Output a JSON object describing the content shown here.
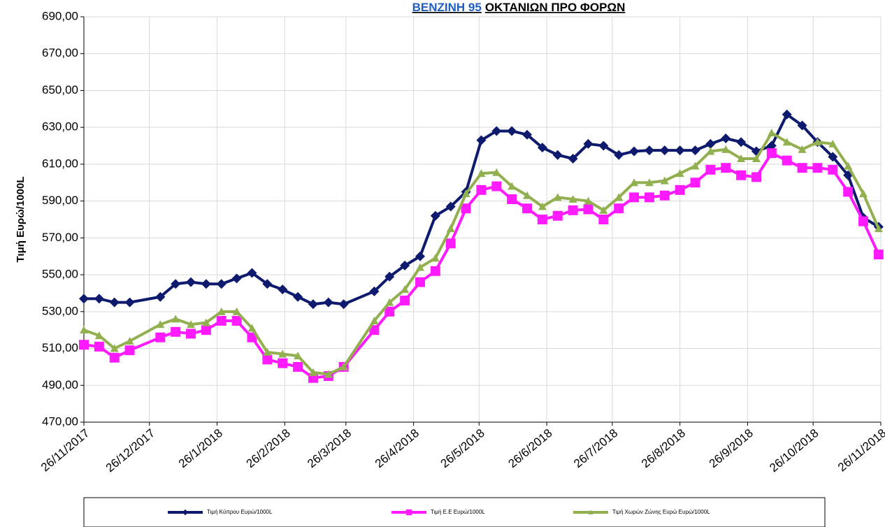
{
  "chart_data": {
    "type": "line",
    "title": [
      "BENZINH 95",
      "ΟΚΤΑΝΙΩΝ ΠΡΟ ΦΟΡΩΝ"
    ],
    "title_colors": [
      "#1f5fbf",
      "#000000"
    ],
    "ylabel": "Τιμή Ευρώ/1000L",
    "x": [
      "2017-11-26",
      "2017-12-03",
      "2017-12-10",
      "2017-12-17",
      "2017-12-31",
      "2018-01-07",
      "2018-01-14",
      "2018-01-21",
      "2018-01-28",
      "2018-02-04",
      "2018-02-11",
      "2018-02-18",
      "2018-02-25",
      "2018-03-04",
      "2018-03-11",
      "2018-03-18",
      "2018-03-25",
      "2018-04-08",
      "2018-04-15",
      "2018-04-22",
      "2018-04-29",
      "2018-05-06",
      "2018-05-13",
      "2018-05-20",
      "2018-05-27",
      "2018-06-03",
      "2018-06-10",
      "2018-06-17",
      "2018-06-24",
      "2018-07-01",
      "2018-07-08",
      "2018-07-15",
      "2018-07-22",
      "2018-07-29",
      "2018-08-05",
      "2018-08-12",
      "2018-08-19",
      "2018-08-26",
      "2018-09-02",
      "2018-09-09",
      "2018-09-16",
      "2018-09-23",
      "2018-09-30",
      "2018-10-07",
      "2018-10-14",
      "2018-10-21",
      "2018-10-28",
      "2018-11-04",
      "2018-11-11",
      "2018-11-18",
      "2018-11-25"
    ],
    "series": [
      {
        "name": "Τιμή Κύπρου Ευρώ/1000L",
        "color": "#0d1a6e",
        "marker": "diamond",
        "values": [
          537,
          537,
          535,
          535,
          538,
          545,
          546,
          545,
          545,
          548,
          551,
          545,
          542,
          538,
          534,
          535,
          534,
          541,
          549,
          555,
          560,
          582,
          587,
          595,
          623,
          628,
          628,
          626,
          619,
          615,
          613,
          621,
          620,
          615,
          617,
          617.5,
          617.5,
          617.5,
          617.5,
          621,
          624,
          622,
          617,
          620,
          637,
          631,
          622,
          614,
          604,
          581,
          576
        ]
      },
      {
        "name": "Τιμή Ε.Ε Ευρώ/1000L",
        "color": "#ff1aff",
        "marker": "square",
        "values": [
          512,
          511,
          505,
          509,
          516,
          519,
          518,
          520,
          525,
          525,
          516,
          504,
          502,
          500,
          494,
          495,
          500,
          520,
          530,
          536,
          546,
          552,
          567,
          586,
          596,
          598,
          591,
          586,
          580,
          582,
          585,
          585.5,
          580,
          586,
          592,
          592,
          593,
          596,
          600,
          607,
          608,
          604,
          603,
          616,
          612,
          608,
          608,
          607,
          595,
          579,
          561
        ]
      },
      {
        "name": "Τιμή Χωρών Ζώνης Ευρώ Ευρώ/1000L",
        "color": "#92b050",
        "marker": "triangle",
        "values": [
          520,
          517,
          510,
          514,
          523,
          526,
          523,
          524,
          530,
          530,
          521,
          508,
          507,
          506,
          497,
          496,
          500,
          525,
          535,
          542,
          554,
          559,
          575,
          594,
          605,
          605.5,
          598,
          593,
          587,
          592,
          591,
          590,
          585,
          592,
          600,
          600,
          601,
          605,
          609,
          617,
          618,
          613,
          613,
          627,
          622,
          618,
          622,
          621,
          609,
          594,
          575
        ]
      }
    ],
    "xlim": [
      "2017-11-26",
      "2018-11-26"
    ],
    "xticks": [
      {
        "value": "2017-11-26",
        "label": "26/11/2017"
      },
      {
        "value": "2017-12-26",
        "label": "26/12/2017"
      },
      {
        "value": "2018-01-26",
        "label": "26/1/2018"
      },
      {
        "value": "2018-02-26",
        "label": "26/2/2018"
      },
      {
        "value": "2018-03-26",
        "label": "26/3/2018"
      },
      {
        "value": "2018-04-26",
        "label": "26/4/2018"
      },
      {
        "value": "2018-05-26",
        "label": "26/5/2018"
      },
      {
        "value": "2018-06-26",
        "label": "26/6/2018"
      },
      {
        "value": "2018-07-26",
        "label": "26/7/2018"
      },
      {
        "value": "2018-08-26",
        "label": "26/8/2018"
      },
      {
        "value": "2018-09-26",
        "label": "26/9/2018"
      },
      {
        "value": "2018-10-26",
        "label": "26/10/2018"
      },
      {
        "value": "2018-11-26",
        "label": "26/11/2018"
      }
    ],
    "ylim": [
      470,
      690
    ],
    "yticks": [
      {
        "value": 470,
        "label": "470,00"
      },
      {
        "value": 490,
        "label": "490,00"
      },
      {
        "value": 510,
        "label": "510,00"
      },
      {
        "value": 530,
        "label": "530,00"
      },
      {
        "value": 550,
        "label": "550,00"
      },
      {
        "value": 570,
        "label": "570,00"
      },
      {
        "value": 590,
        "label": "590,00"
      },
      {
        "value": 610,
        "label": "610,00"
      },
      {
        "value": 630,
        "label": "630,00"
      },
      {
        "value": 650,
        "label": "650,00"
      },
      {
        "value": 670,
        "label": "670,00"
      },
      {
        "value": 690,
        "label": "690,00"
      }
    ],
    "grid": true,
    "legend": "bottom"
  }
}
